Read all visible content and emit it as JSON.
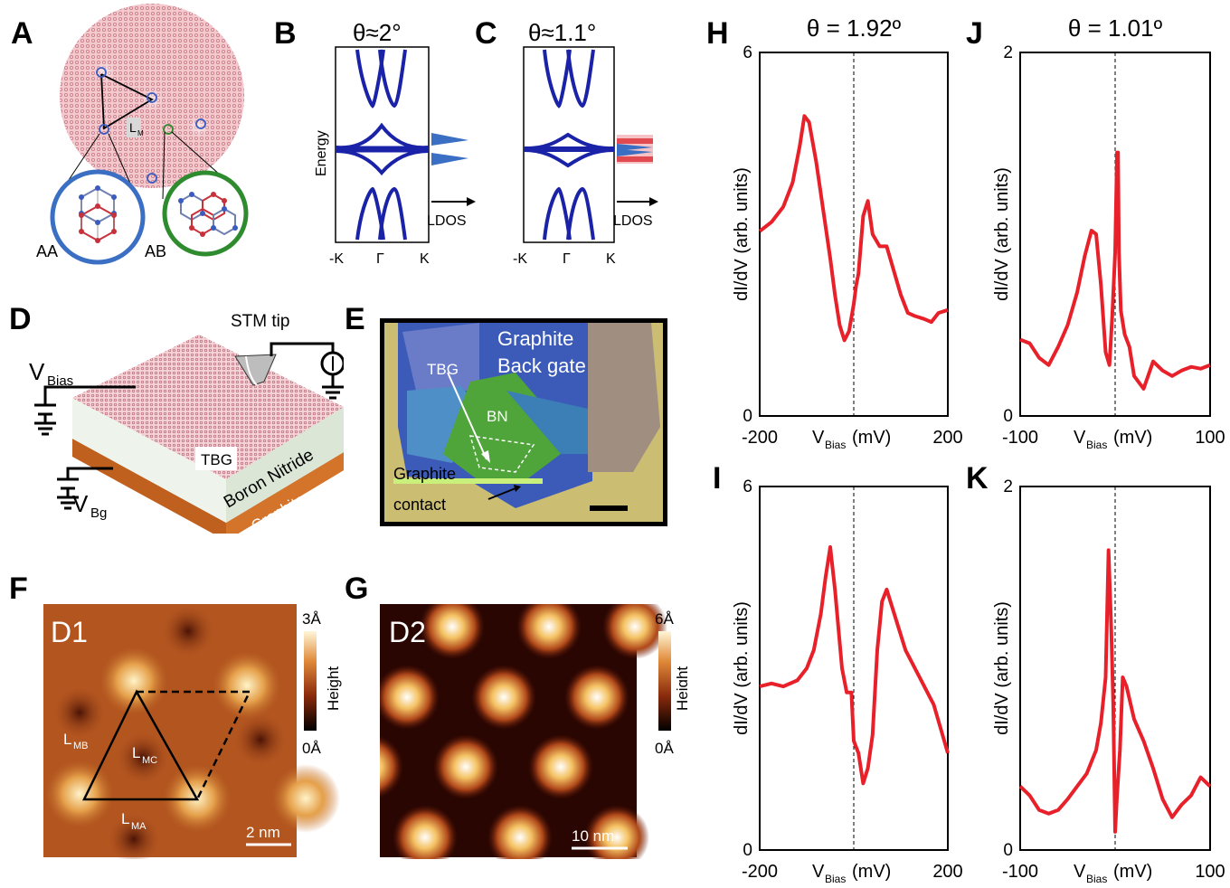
{
  "panel_labels": {
    "a": "A",
    "b": "B",
    "c": "C",
    "d": "D",
    "e": "E",
    "f": "F",
    "g": "G",
    "h": "H",
    "i": "I",
    "j": "J",
    "k": "K"
  },
  "panel_a": {
    "aa": "AA",
    "ab": "AB",
    "lm": "L",
    "lm_sub": "M"
  },
  "panel_b": {
    "title": "θ≈2°",
    "ylabel": "Energy",
    "ticks": [
      "-K",
      "Γ",
      "K"
    ],
    "ldos": "LDOS"
  },
  "panel_c": {
    "title": "θ≈1.1°",
    "ticks": [
      "-K",
      "Γ",
      "K"
    ],
    "ldos": "LDOS"
  },
  "panel_d": {
    "stm_tip": "STM tip",
    "vbias": "V",
    "vbias_sub": "Bias",
    "vbg": "V",
    "vbg_sub": "Bg",
    "tbg": "TBG",
    "bn": "Boron Nitride",
    "graphite": "Graphite"
  },
  "panel_e": {
    "graphite_gate_1": "Graphite",
    "graphite_gate_2": "Back gate",
    "tbg": "TBG",
    "bn": "BN",
    "contact_1": "Graphite",
    "contact_2": "contact"
  },
  "panel_f": {
    "tag": "D1",
    "cb_max": "3Å",
    "cb_min": "0Å",
    "cb_label": "Height",
    "scale": "2 nm",
    "lmb": "L",
    "lmb_sub": "MB",
    "lmc": "L",
    "lmc_sub": "MC",
    "lma": "L",
    "lma_sub": "MA"
  },
  "panel_g": {
    "tag": "D2",
    "cb_max": "6Å",
    "cb_min": "0Å",
    "cb_label": "Height",
    "scale": "10 nm"
  },
  "colors": {
    "curve": "#e8202a",
    "band": "#1a22a8",
    "ring_aa": "#3a6fc4",
    "ring_ab": "#2e8b2e"
  },
  "chart_data": [
    {
      "id": "H",
      "type": "line",
      "title": "θ = 1.92º",
      "xlabel": "V",
      "xlabel_sub": "Bias",
      "xunit": "(mV)",
      "ylabel": "dI/dV (arb. units)",
      "xlim": [
        -200,
        200
      ],
      "ylim": [
        0,
        6
      ],
      "xticks": [
        "-200",
        "0",
        "200"
      ],
      "yticks": [
        "0",
        "6"
      ],
      "x": [
        -200,
        -175,
        -150,
        -130,
        -115,
        -105,
        -95,
        -80,
        -65,
        -50,
        -40,
        -30,
        -20,
        -10,
        0,
        5,
        10,
        20,
        30,
        40,
        55,
        70,
        85,
        100,
        115,
        130,
        150,
        165,
        180,
        200
      ],
      "y": [
        3.05,
        3.2,
        3.45,
        3.85,
        4.45,
        4.95,
        4.85,
        4.2,
        3.4,
        2.6,
        2.0,
        1.5,
        1.25,
        1.4,
        1.85,
        2.15,
        2.35,
        3.3,
        3.55,
        3.0,
        2.8,
        2.8,
        2.4,
        2.0,
        1.7,
        1.65,
        1.6,
        1.55,
        1.7,
        1.75
      ]
    },
    {
      "id": "J",
      "type": "line",
      "title": "θ = 1.01º",
      "xlabel": "V",
      "xlabel_sub": "Bias",
      "xunit": "(mV)",
      "ylabel": "dI/dV (arb. units)",
      "xlim": [
        -100,
        100
      ],
      "ylim": [
        0,
        2
      ],
      "xticks": [
        "-100",
        "0",
        "100"
      ],
      "yticks": [
        "0",
        "2"
      ],
      "x": [
        -100,
        -90,
        -80,
        -70,
        -60,
        -50,
        -40,
        -32,
        -25,
        -20,
        -15,
        -10,
        -6,
        -3,
        0,
        2,
        3,
        4,
        6,
        10,
        15,
        20,
        30,
        40,
        50,
        60,
        70,
        80,
        90,
        100
      ],
      "y": [
        0.42,
        0.4,
        0.32,
        0.28,
        0.38,
        0.5,
        0.68,
        0.88,
        1.02,
        1.0,
        0.72,
        0.35,
        0.28,
        0.55,
        0.9,
        1.45,
        1.45,
        0.9,
        0.58,
        0.45,
        0.38,
        0.22,
        0.15,
        0.3,
        0.25,
        0.22,
        0.25,
        0.27,
        0.26,
        0.28
      ]
    },
    {
      "id": "I",
      "type": "line",
      "title": "",
      "xlabel": "V",
      "xlabel_sub": "Bias",
      "xunit": "(mV)",
      "ylabel": "dI/dV (arb. units)",
      "xlim": [
        -200,
        200
      ],
      "ylim": [
        0,
        6
      ],
      "xticks": [
        "-200",
        "0",
        "200"
      ],
      "yticks": [
        "0",
        "6"
      ],
      "x": [
        -200,
        -175,
        -150,
        -120,
        -100,
        -85,
        -70,
        -60,
        -50,
        -40,
        -25,
        -15,
        -5,
        0,
        10,
        20,
        30,
        40,
        50,
        60,
        70,
        90,
        110,
        130,
        150,
        170,
        185,
        200
      ],
      "y": [
        2.7,
        2.75,
        2.7,
        2.8,
        3.0,
        3.3,
        3.9,
        4.5,
        5.0,
        4.3,
        3.0,
        2.6,
        2.6,
        1.8,
        1.6,
        1.1,
        1.35,
        1.9,
        3.3,
        4.1,
        4.3,
        3.8,
        3.3,
        3.0,
        2.7,
        2.4,
        2.0,
        1.6
      ]
    },
    {
      "id": "K",
      "type": "line",
      "title": "",
      "xlabel": "V",
      "xlabel_sub": "Bias",
      "xunit": "(mV)",
      "ylabel": "dI/dV (arb. units)",
      "xlim": [
        -100,
        100
      ],
      "ylim": [
        0,
        2
      ],
      "xticks": [
        "-100",
        "0",
        "100"
      ],
      "yticks": [
        "0",
        "2"
      ],
      "x": [
        -100,
        -90,
        -80,
        -70,
        -60,
        -50,
        -40,
        -30,
        -20,
        -15,
        -10,
        -7,
        -4,
        -2,
        0,
        2,
        5,
        8,
        12,
        20,
        30,
        40,
        50,
        60,
        70,
        80,
        90,
        100
      ],
      "y": [
        0.35,
        0.3,
        0.22,
        0.2,
        0.22,
        0.28,
        0.35,
        0.42,
        0.55,
        0.7,
        0.95,
        1.65,
        1.2,
        0.8,
        0.1,
        0.3,
        0.55,
        0.95,
        0.9,
        0.72,
        0.6,
        0.45,
        0.28,
        0.18,
        0.25,
        0.3,
        0.4,
        0.35
      ]
    }
  ]
}
